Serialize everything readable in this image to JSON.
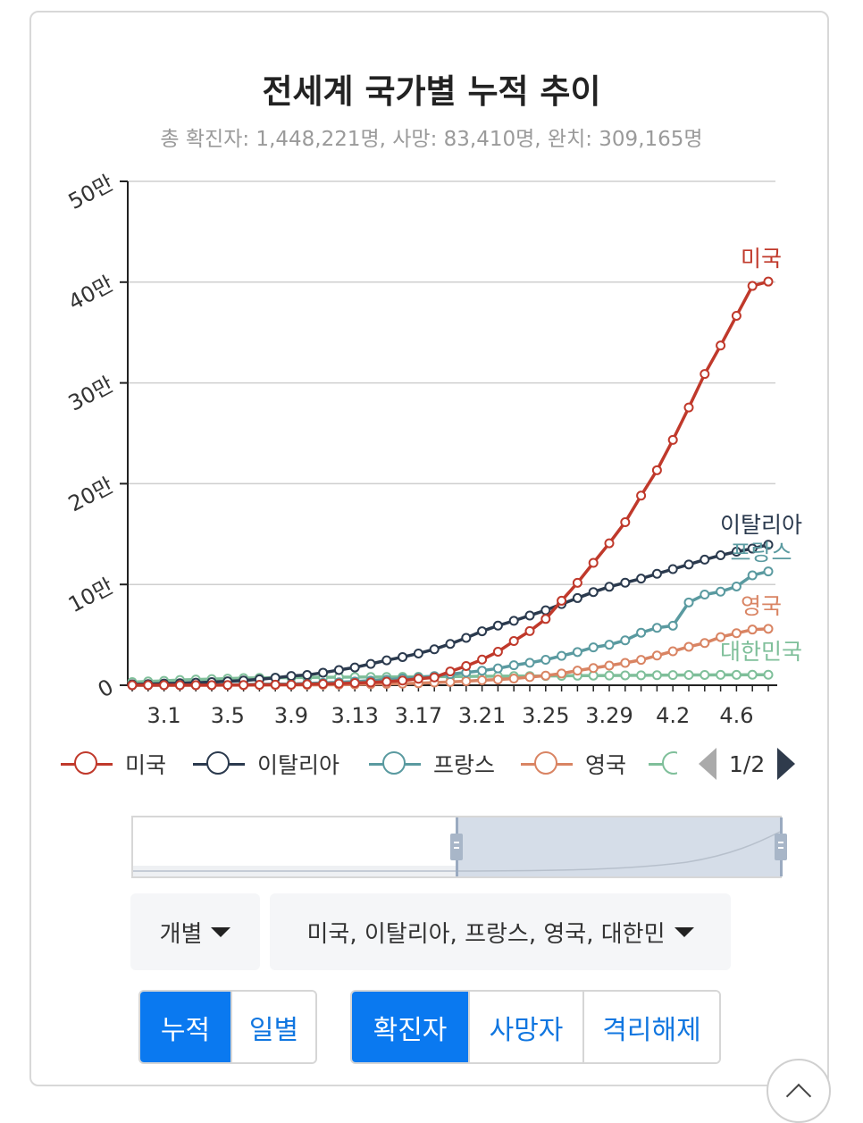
{
  "title": "전세계 국가별 누적 추이",
  "subtitle": "총 확진자: 1,448,221명, 사망: 83,410명, 완치: 309,165명",
  "legend": {
    "items": [
      {
        "label": "미국",
        "color": "#c0392b"
      },
      {
        "label": "이탈리아",
        "color": "#2b3a4e"
      },
      {
        "label": "프랑스",
        "color": "#5a9aa0"
      },
      {
        "label": "영국",
        "color": "#d98463"
      },
      {
        "label": "",
        "color": "#7fbf9a"
      }
    ],
    "page": "1/2"
  },
  "controls": {
    "mode_dropdown": "개별",
    "country_dropdown": "미국, 이탈리아, 프랑스, 영국, 대한민",
    "range_buttons": [
      "누적",
      "일별"
    ],
    "range_active": "누적",
    "type_buttons": [
      "확진자",
      "사망자",
      "격리해제"
    ],
    "type_active": "확진자"
  },
  "chart_data": {
    "type": "line",
    "title": "전세계 국가별 누적 추이",
    "xlabel": "",
    "ylabel": "",
    "ylim": [
      0,
      500000
    ],
    "yticks": [
      0,
      100000,
      200000,
      300000,
      400000,
      500000
    ],
    "ytick_labels": [
      "0",
      "10만",
      "20만",
      "30만",
      "40만",
      "50만"
    ],
    "x": [
      "2.28",
      "2.29",
      "3.1",
      "3.2",
      "3.3",
      "3.4",
      "3.5",
      "3.6",
      "3.7",
      "3.8",
      "3.9",
      "3.10",
      "3.11",
      "3.12",
      "3.13",
      "3.14",
      "3.15",
      "3.16",
      "3.17",
      "3.18",
      "3.19",
      "3.20",
      "3.21",
      "3.22",
      "3.23",
      "3.24",
      "3.25",
      "3.26",
      "3.27",
      "3.28",
      "3.29",
      "3.30",
      "3.31",
      "4.1",
      "4.2",
      "4.3",
      "4.4",
      "4.5",
      "4.6",
      "4.7",
      "4.8"
    ],
    "xtick_labels": [
      "3.1",
      "3.5",
      "3.9",
      "3.13",
      "3.17",
      "3.21",
      "3.25",
      "3.29",
      "4.2",
      "4.6"
    ],
    "grid": true,
    "series": [
      {
        "name": "미국",
        "color": "#c0392b",
        "values": [
          60,
          68,
          74,
          98,
          118,
          149,
          217,
          262,
          402,
          518,
          583,
          959,
          1281,
          1663,
          2179,
          2726,
          3499,
          4632,
          6421,
          7783,
          13677,
          19100,
          25489,
          33276,
          43847,
          53740,
          65778,
          83836,
          101657,
          121478,
          140886,
          161807,
          188172,
          213372,
          243453,
          275586,
          308850,
          337072,
          366614,
          396223,
          400549
        ]
      },
      {
        "name": "이탈리아",
        "color": "#2b3a4e",
        "values": [
          888,
          1128,
          1694,
          2036,
          2502,
          3089,
          3858,
          4636,
          5883,
          7375,
          9172,
          10149,
          12462,
          15113,
          17660,
          21157,
          24747,
          27980,
          31506,
          35713,
          41035,
          47021,
          53578,
          59138,
          63927,
          69176,
          74386,
          80589,
          86498,
          92472,
          97689,
          101739,
          105792,
          110574,
          115242,
          119827,
          124632,
          128948,
          132547,
          135586,
          139422
        ]
      },
      {
        "name": "프랑스",
        "color": "#5a9aa0",
        "values": [
          57,
          100,
          130,
          191,
          204,
          288,
          380,
          656,
          957,
          1134,
          1217,
          1784,
          2281,
          2876,
          3661,
          4499,
          5423,
          6633,
          7730,
          9134,
          10995,
          12612,
          14459,
          16689,
          19856,
          22302,
          25233,
          29155,
          32964,
          37575,
          40174,
          44550,
          52128,
          56989,
          59105,
          82165,
          89953,
          92839,
          98010,
          109069,
          112950
        ]
      },
      {
        "name": "영국",
        "color": "#d98463",
        "values": [
          20,
          23,
          36,
          40,
          51,
          85,
          115,
          163,
          206,
          273,
          321,
          382,
          456,
          590,
          798,
          1140,
          1391,
          1543,
          1950,
          2626,
          3269,
          3983,
          5018,
          5683,
          6650,
          8077,
          9529,
          11658,
          14543,
          17089,
          19522,
          22141,
          25150,
          29474,
          33718,
          38168,
          41903,
          47806,
          51608,
          55242,
          56000
        ]
      },
      {
        "name": "대한민국",
        "color": "#7fbf9a",
        "values": [
          3150,
          3736,
          4335,
          5186,
          5621,
          6088,
          6593,
          7041,
          7313,
          7478,
          7513,
          7755,
          7869,
          7979,
          8086,
          8162,
          8236,
          8320,
          8413,
          8565,
          8652,
          8799,
          8897,
          8961,
          9037,
          9137,
          9241,
          9332,
          9478,
          9583,
          9661,
          9786,
          9887,
          9976,
          10062,
          10156,
          10237,
          10284,
          10331,
          10384,
          10423
        ]
      }
    ],
    "line_labels": [
      "미국",
      "이탈리아",
      "프랑스",
      "영국",
      "대한민국"
    ]
  }
}
